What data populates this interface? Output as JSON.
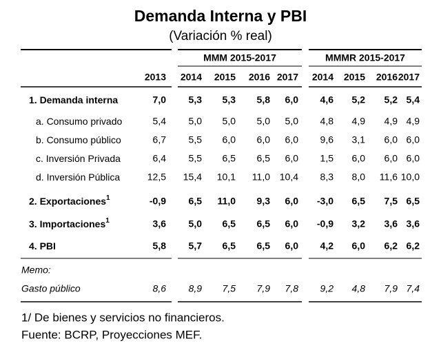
{
  "title": "Demanda Interna y PBI",
  "subtitle": "(Variación % real)",
  "table": {
    "groups": [
      "MMM 2015-2017",
      "MMMR 2015-2017"
    ],
    "years": [
      "2013",
      "2014",
      "2015",
      "2016",
      "2017",
      "2014",
      "2015",
      "2016",
      "2017"
    ],
    "rows": [
      {
        "label": "1. Demanda interna",
        "bold": true,
        "values": [
          "7,0",
          "5,3",
          "5,3",
          "5,8",
          "6,0",
          "4,6",
          "5,2",
          "5,2",
          "5,4"
        ]
      },
      {
        "label": "a. Consumo privado",
        "indent": true,
        "values": [
          "5,4",
          "5,0",
          "5,0",
          "5,0",
          "5,0",
          "4,8",
          "4,9",
          "4,9",
          "4,9"
        ]
      },
      {
        "label": "b. Consumo público",
        "indent": true,
        "values": [
          "6,7",
          "5,5",
          "6,0",
          "6,0",
          "6,0",
          "9,6",
          "3,1",
          "6,0",
          "6,0"
        ]
      },
      {
        "label": "c.  Inversión Privada",
        "indent": true,
        "values": [
          "6,4",
          "5,5",
          "6,5",
          "6,5",
          "6,0",
          "1,5",
          "6,0",
          "6,0",
          "6,0"
        ]
      },
      {
        "label": "d. Inversión Pública",
        "indent": true,
        "values": [
          "12,5",
          "15,4",
          "10,1",
          "11,0",
          "10,4",
          "8,3",
          "8,0",
          "11,6",
          "10,0"
        ]
      },
      {
        "label": "2. Exportaciones",
        "sup": "1",
        "bold": true,
        "values": [
          "-0,9",
          "6,5",
          "11,0",
          "9,3",
          "6,0",
          "-3,0",
          "6,5",
          "7,5",
          "6,5"
        ]
      },
      {
        "label": "3. Importaciones",
        "sup": "1",
        "bold": true,
        "values": [
          "3,6",
          "5,0",
          "6,5",
          "6,5",
          "6,0",
          "-0,9",
          "3,2",
          "3,6",
          "3,6"
        ]
      },
      {
        "label": "4. PBI",
        "bold": true,
        "values": [
          "5,8",
          "5,7",
          "6,5",
          "6,5",
          "6,0",
          "4,2",
          "6,0",
          "6,2",
          "6,2"
        ]
      }
    ],
    "memo": {
      "label": "Memo:",
      "row": {
        "label": "Gasto público",
        "values": [
          "8,6",
          "8,9",
          "7,5",
          "7,9",
          "7,8",
          "9,2",
          "4,8",
          "7,9",
          "7,4"
        ]
      }
    }
  },
  "footnotes": [
    "1/ De bienes y servicios no financieros.",
    "Fuente: BCRP, Proyecciones MEF."
  ]
}
